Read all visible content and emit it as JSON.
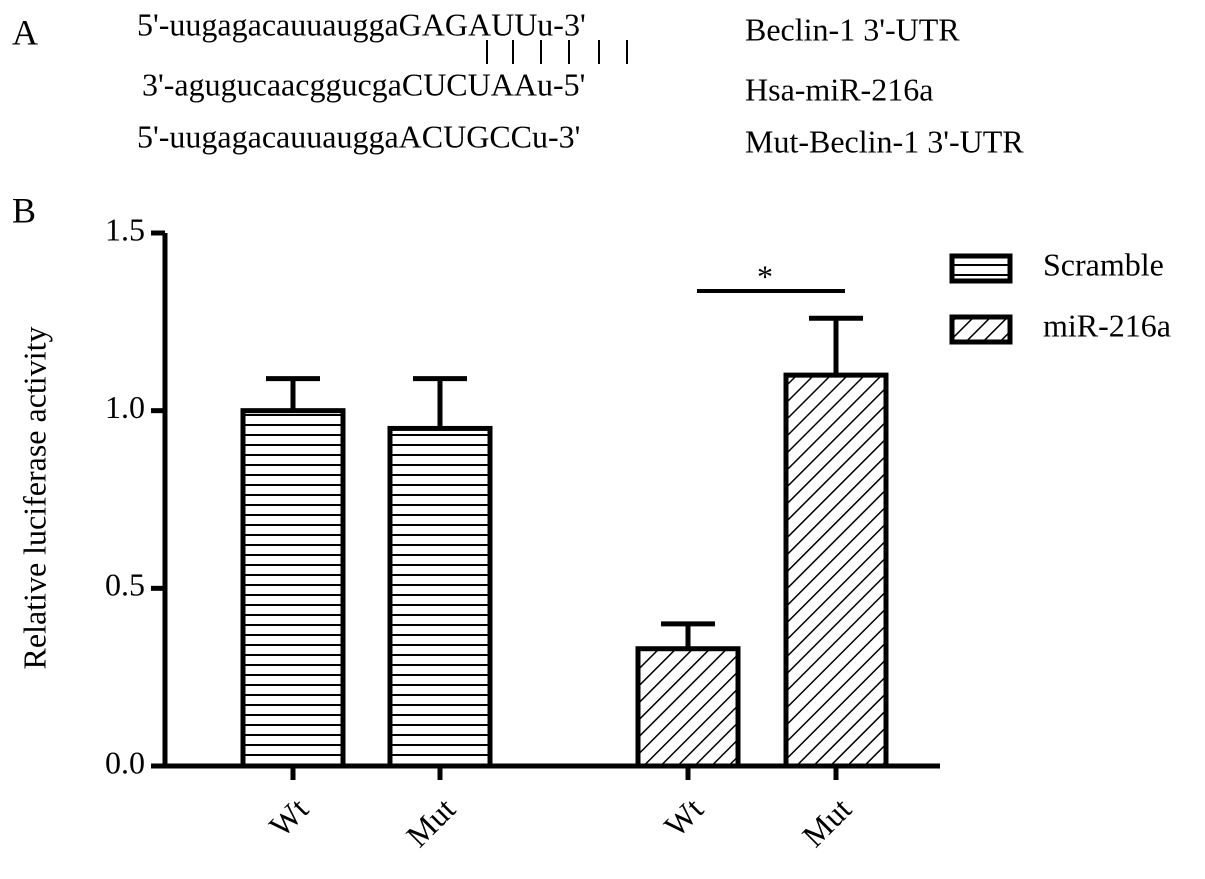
{
  "panel_labels": [
    "A",
    "B"
  ],
  "sequences": [
    {
      "text": "5'-uugagacauuauggaGAGAUUu-3'",
      "label": "Beclin-1 3'-UTR"
    },
    {
      "text": "3'-agugucaacggucgaCUCUAAu-5'",
      "label": "Hsa-miR-216a"
    },
    {
      "text": "5'-uugagacauuauggaACUGCCu-3'",
      "label": "Mut-Beclin-1 3'-UTR"
    }
  ],
  "chart_data": {
    "type": "bar",
    "ylabel": "Relative luciferase activity",
    "categories": [
      "Wt",
      "Mut",
      "Wt",
      "Mut"
    ],
    "series": [
      {
        "name": "Scramble",
        "color": "#000000",
        "pattern": "horizontal",
        "values": [
          1.0,
          0.95,
          null,
          null
        ],
        "errors": [
          0.09,
          0.14,
          null,
          null
        ]
      },
      {
        "name": "miR-216a",
        "color": "#000000",
        "pattern": "diagonal",
        "values": [
          null,
          null,
          0.33,
          1.1
        ],
        "errors": [
          null,
          null,
          0.07,
          0.16
        ]
      }
    ],
    "annotation": "*",
    "ylim": [
      0,
      1.5
    ],
    "yticks": [
      {
        "value": 0,
        "label": "0.0"
      },
      {
        "value": 0.5,
        "label": "0.5"
      },
      {
        "value": 1,
        "label": "1.0"
      },
      {
        "value": 1.5,
        "label": "1.5"
      }
    ],
    "legend": "upper right"
  }
}
